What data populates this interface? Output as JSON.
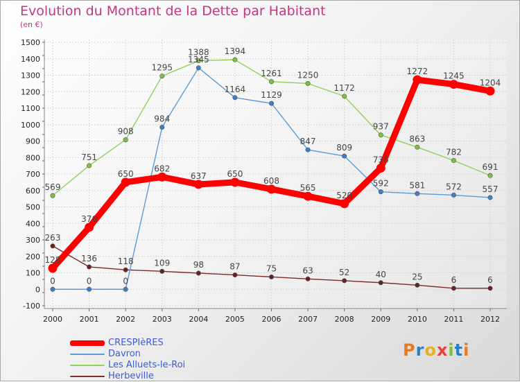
{
  "title": "Evolution du Montant de la Dette par Habitant",
  "subtitle": "(en €)",
  "logo": {
    "text": "Proxiti",
    "colors": [
      "#e87a22",
      "#2f7fc1",
      "#e6b21c",
      "#e83e3e",
      "#7dbf2c",
      "#2f7fc1",
      "#e87a22"
    ]
  },
  "chart_data": {
    "type": "line",
    "x": [
      "2000",
      "2001",
      "2002",
      "2003",
      "2004",
      "2005",
      "2006",
      "2007",
      "2008",
      "2009",
      "2010",
      "2011",
      "2012"
    ],
    "ylim": [
      -100,
      1500
    ],
    "yticks": [
      "-100",
      "0",
      "100",
      "200",
      "300",
      "400",
      "500",
      "600",
      "700",
      "800",
      "900",
      "1000",
      "1100",
      "1200",
      "1300",
      "1400",
      "1500"
    ],
    "grid": true,
    "legend_position": "bottom-left",
    "series": [
      {
        "name": "CRESPIèRES",
        "color": "#ff0000",
        "point_color": "#ff0000",
        "label_color": "#444444",
        "values": [
          128,
          376,
          650,
          682,
          637,
          650,
          608,
          565,
          520,
          736,
          1272,
          1245,
          1204
        ],
        "labels": [
          "128",
          "376",
          "650",
          "682",
          "637",
          "650",
          "608",
          "565",
          "520",
          "736",
          "1272",
          "1245",
          "1204"
        ]
      },
      {
        "name": "Davron",
        "color": "#5b9bd5",
        "point_color": "#3a7fc7",
        "label_color": "#444444",
        "values": [
          0,
          0,
          0,
          984,
          1345,
          1164,
          1129,
          847,
          809,
          592,
          581,
          572,
          557
        ],
        "labels": [
          "0",
          "0",
          "0",
          "984",
          "1345",
          "1164",
          "1129",
          "847",
          "809",
          "592",
          "581",
          "572",
          "557"
        ]
      },
      {
        "name": "Les Alluets-le-Roi",
        "color": "#90d15b",
        "point_color": "#7cc242",
        "label_color": "#444444",
        "values": [
          569,
          751,
          908,
          1295,
          1388,
          1394,
          1261,
          1250,
          1172,
          937,
          863,
          782,
          691
        ],
        "labels": [
          "569",
          "751",
          "908",
          "1295",
          "1388",
          "1394",
          "1261",
          "1250",
          "1172",
          "937",
          "863",
          "782",
          "691"
        ]
      },
      {
        "name": "Herbeville",
        "color": "#7a2a2a",
        "point_color": "#6b1f1f",
        "label_color": "#444444",
        "values": [
          263,
          136,
          118,
          109,
          98,
          87,
          75,
          63,
          52,
          40,
          25,
          6,
          6
        ],
        "labels": [
          "263",
          "136",
          "118",
          "109",
          "98",
          "87",
          "75",
          "63",
          "52",
          "40",
          "25",
          "6",
          "6"
        ]
      }
    ]
  }
}
